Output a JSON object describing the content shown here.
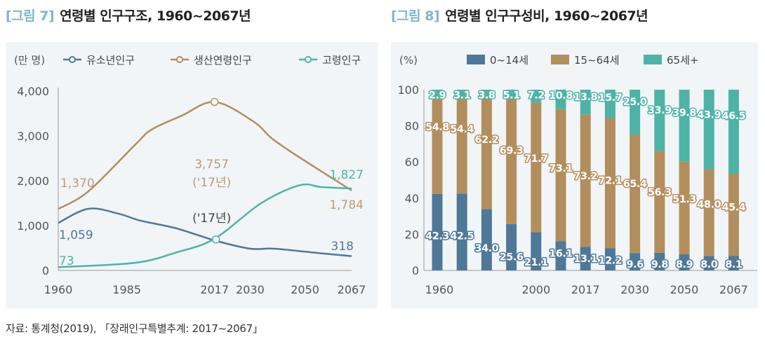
{
  "figures": [
    {
      "number": "[그림 7]",
      "title": "연령별 인구구조, 1960~2067년"
    },
    {
      "number": "[그림 8]",
      "title": "연령별 인구구성비, 1960~2067년"
    }
  ],
  "source": "자료: 통계청(2019), 「장래인구특별추계: 2017~2067」",
  "colors": {
    "youth": "#4e7898",
    "working": "#b38e5d",
    "elderly": "#4db3a7",
    "title_accent": "#7fb8c5",
    "panel_bg": "#f1f5f7"
  },
  "chart_data": [
    {
      "type": "line",
      "unit_label": "(만 명)",
      "xlim": [
        1960,
        2067
      ],
      "ylim": [
        0,
        4000
      ],
      "x_ticks": [
        "1960",
        "1985",
        "2017",
        "2030",
        "2050",
        "2067"
      ],
      "x_tick_values": [
        1960,
        1985,
        2017,
        2030,
        2050,
        2067
      ],
      "y_ticks": [
        "0",
        "1,000",
        "2,000",
        "3,000",
        "4,000"
      ],
      "y_tick_values": [
        0,
        1000,
        2000,
        3000,
        4000
      ],
      "grid": false,
      "legend": "top",
      "series": [
        {
          "name": "유소년인구",
          "color": "#4e7898",
          "points": [
            [
              1960,
              1059
            ],
            [
              1971,
              1375
            ],
            [
              1982,
              1265
            ],
            [
              1990,
              1110
            ],
            [
              2003,
              940
            ],
            [
              2017,
              670
            ],
            [
              2030,
              485
            ],
            [
              2039,
              485
            ],
            [
              2056,
              380
            ],
            [
              2067,
              318
            ]
          ]
        },
        {
          "name": "생산연령인구",
          "color": "#b38e5d",
          "points": [
            [
              1960,
              1370
            ],
            [
              1971,
              1765
            ],
            [
              1988,
              2800
            ],
            [
              1994,
              3140
            ],
            [
              2005,
              3450
            ],
            [
              2017,
              3757
            ],
            [
              2031,
              3330
            ],
            [
              2038,
              2940
            ],
            [
              2048,
              2520
            ],
            [
              2067,
              1784
            ]
          ]
        },
        {
          "name": "고령인구",
          "color": "#4db3a7",
          "points": [
            [
              1960,
              73
            ],
            [
              1988,
              170
            ],
            [
              2003,
              400
            ],
            [
              2017,
              707
            ],
            [
              2034,
              1500
            ],
            [
              2048,
              1900
            ],
            [
              2056,
              1860
            ],
            [
              2067,
              1827
            ]
          ]
        }
      ],
      "annotations": [
        {
          "text": "1,370",
          "series": 1
        },
        {
          "text": "1,059",
          "series": 0
        },
        {
          "text": "73",
          "series": 2
        },
        {
          "text": "3,757",
          "series": 1
        },
        {
          "text": "('17년)",
          "series": 1
        },
        {
          "text": "('17년)",
          "series": 2
        },
        {
          "text": "1,827",
          "series": 2
        },
        {
          "text": "1,784",
          "series": 1
        },
        {
          "text": "318",
          "series": 0
        }
      ]
    },
    {
      "type": "bar",
      "stacked": true,
      "unit_label": "(%)",
      "ylim": [
        0,
        100
      ],
      "y_ticks": [
        "0",
        "20",
        "40",
        "60",
        "80",
        "100"
      ],
      "categories": [
        "1960",
        "",
        "",
        "",
        "2000",
        "",
        "2017",
        "",
        "2030",
        "",
        "2050",
        "",
        "2067"
      ],
      "legend": "top",
      "series": [
        {
          "name": "0~14세",
          "color": "#4e7898",
          "values": [
            42.3,
            42.5,
            34.0,
            25.6,
            21.1,
            16.1,
            13.1,
            12.2,
            9.6,
            9.8,
            8.9,
            8.0,
            8.1
          ]
        },
        {
          "name": "15~64세",
          "color": "#b38e5d",
          "values": [
            54.8,
            54.4,
            62.2,
            69.3,
            71.7,
            73.1,
            73.2,
            72.1,
            65.4,
            56.3,
            51.3,
            48.0,
            45.4
          ]
        },
        {
          "name": "65세+",
          "color": "#4db3a7",
          "values": [
            2.9,
            3.1,
            3.8,
            5.1,
            7.2,
            10.8,
            13.8,
            15.7,
            25.0,
            33.9,
            39.8,
            43.9,
            46.5
          ]
        }
      ]
    }
  ]
}
